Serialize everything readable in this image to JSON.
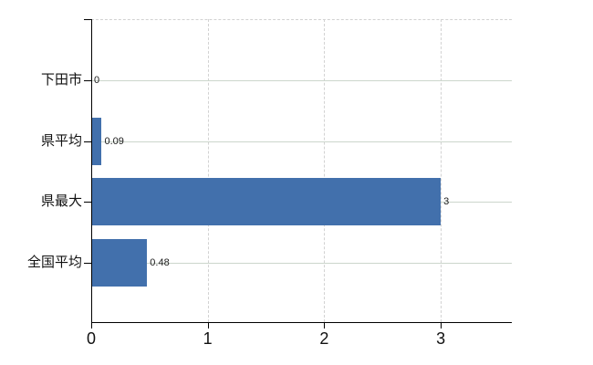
{
  "chart_data": {
    "type": "bar",
    "orientation": "horizontal",
    "title": "",
    "xlabel": "",
    "ylabel": "",
    "categories": [
      "下田市",
      "県平均",
      "県最大",
      "全国平均"
    ],
    "values": [
      0,
      0.09,
      3,
      0.48
    ],
    "value_labels": [
      "0",
      "0.09",
      "3",
      "0.48"
    ],
    "x_ticks": [
      0,
      1,
      2,
      3
    ],
    "x_tick_labels": [
      "0",
      "1",
      "2",
      "3"
    ],
    "xlim": [
      0,
      3.61
    ],
    "grid": true,
    "legend": false,
    "colors": {
      "bar": "#4270ac",
      "axis": "#000000",
      "grid_horizontal": "#ccd6cc",
      "grid_vertical": "#d2d2d2",
      "text": "#111111"
    }
  }
}
